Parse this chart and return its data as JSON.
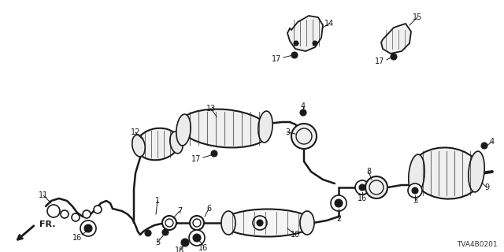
{
  "background_color": "#ffffff",
  "line_color": "#1a1a1a",
  "label_color": "#111111",
  "diagram_id": "TVA4B0201",
  "figsize": [
    6.4,
    3.2
  ],
  "dpi": 100
}
